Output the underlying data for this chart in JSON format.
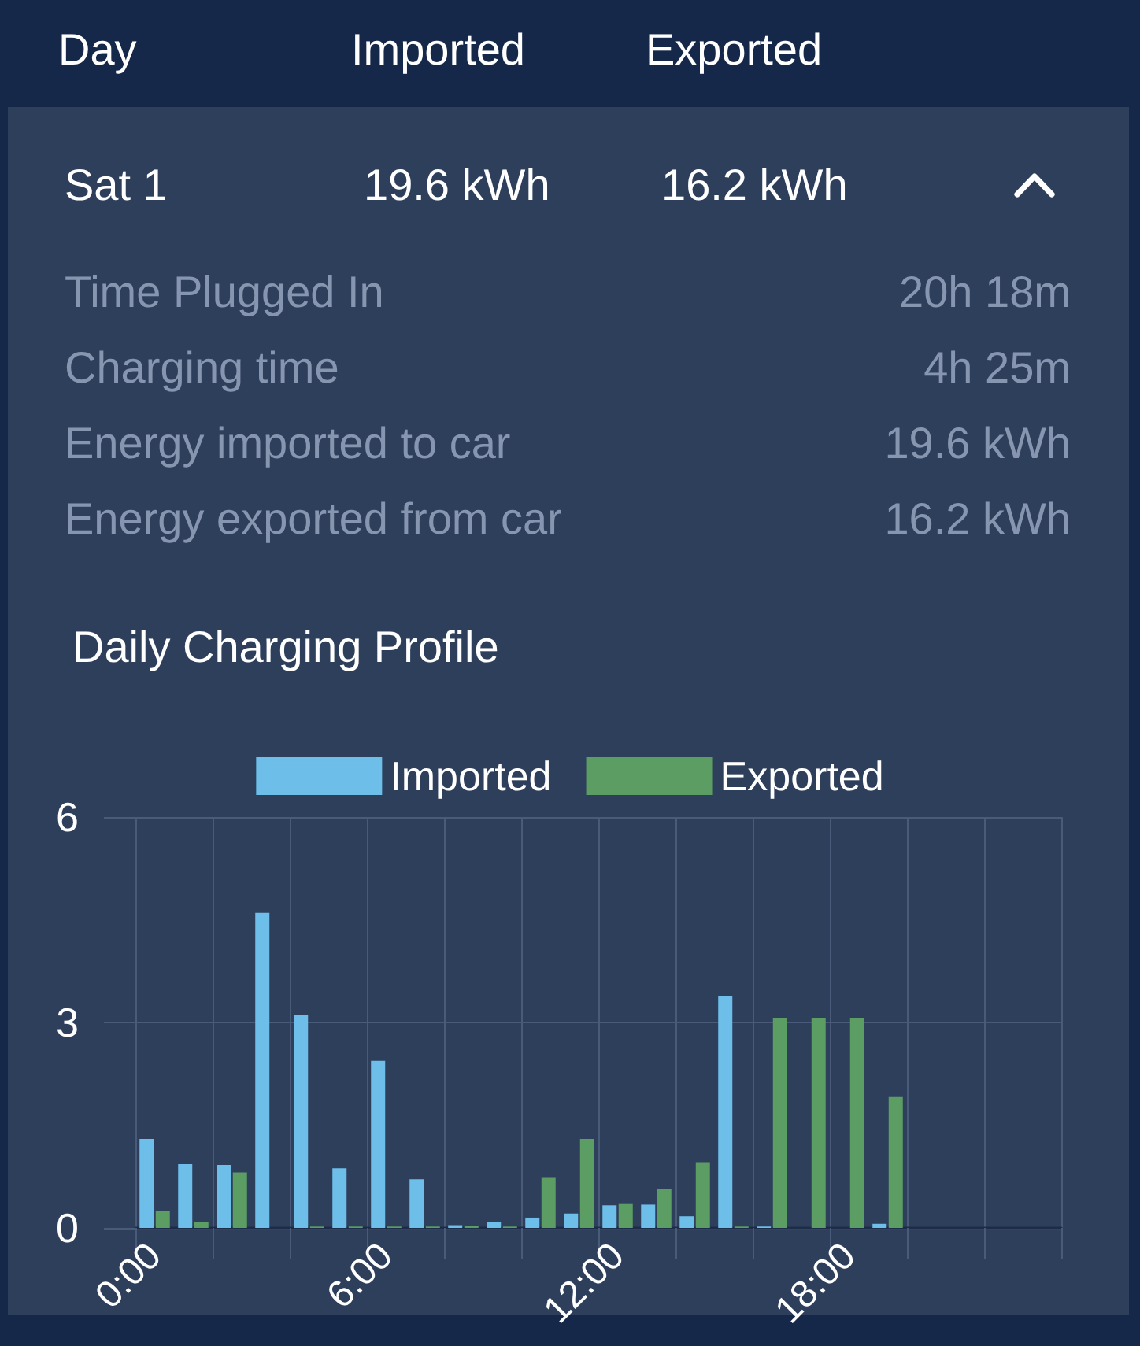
{
  "chart_data": [
    {
      "type": "other",
      "annotations": [
        "Day",
        "Imported",
        "Exported",
        "Sat 1",
        "19.6 kWh",
        "16.2 kWh",
        "Time Plugged In",
        "20h 18m",
        "Charging time",
        "4h 25m",
        "Energy imported to car",
        "19.6 kWh",
        "Energy exported from car",
        "16.2 kWh"
      ]
    },
    {
      "type": "bar",
      "title": "Daily Charging Profile",
      "categories": [
        "0:00",
        null,
        null,
        null,
        null,
        null,
        "6:00",
        null,
        null,
        null,
        null,
        null,
        "12:00",
        null,
        null,
        null,
        null,
        null,
        "18:00",
        null,
        null,
        null,
        null,
        null
      ],
      "series": [
        {
          "name": "Imported",
          "color": "#6dbfe9",
          "values": [
            1.3,
            0.93,
            0.92,
            4.6,
            3.11,
            0.87,
            2.44,
            0.71,
            0.04,
            0.09,
            0.15,
            0.21,
            0.33,
            0.34,
            0.17,
            3.39,
            0.02,
            null,
            null,
            0.06,
            null,
            null,
            null,
            null
          ]
        },
        {
          "name": "Exported",
          "color": "#5c9d64",
          "values": [
            0.25,
            0.08,
            0.81,
            null,
            0.02,
            0.02,
            0.02,
            0.02,
            0.03,
            0.02,
            0.74,
            1.3,
            0.36,
            0.57,
            0.96,
            0.02,
            3.07,
            3.07,
            3.07,
            1.91,
            null,
            null,
            null,
            null
          ]
        }
      ],
      "ylim": [
        0,
        6
      ],
      "yticks": [
        0,
        3,
        6
      ],
      "grid": true,
      "legend": "top"
    }
  ]
}
